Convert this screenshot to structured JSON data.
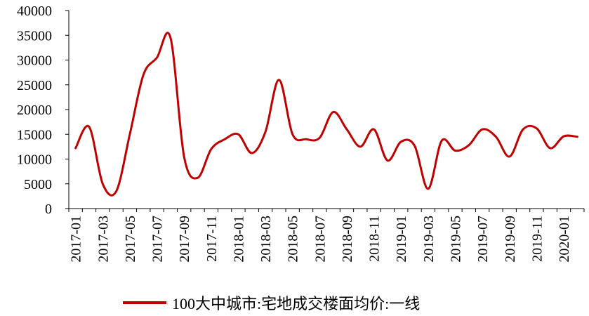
{
  "chart_data": {
    "type": "line",
    "title": "",
    "xlabel": "",
    "ylabel": "",
    "ylim": [
      0,
      40000
    ],
    "yticks": [
      "0",
      "5000",
      "10000",
      "15000",
      "20000",
      "25000",
      "30000",
      "35000",
      "40000"
    ],
    "x": [
      "2017-01",
      "2017-02",
      "2017-03",
      "2017-04",
      "2017-05",
      "2017-06",
      "2017-07",
      "2017-08",
      "2017-09",
      "2017-10",
      "2017-11",
      "2017-12",
      "2018-01",
      "2018-02",
      "2018-03",
      "2018-04",
      "2018-05",
      "2018-06",
      "2018-07",
      "2018-08",
      "2018-09",
      "2018-10",
      "2018-11",
      "2018-12",
      "2019-01",
      "2019-02",
      "2019-03",
      "2019-04",
      "2019-05",
      "2019-06",
      "2019-07",
      "2019-08",
      "2019-09",
      "2019-10",
      "2019-11",
      "2019-12",
      "2020-01",
      "2020-02"
    ],
    "xtick_labels": [
      "2017-01",
      "2017-03",
      "2017-05",
      "2017-07",
      "2017-09",
      "2017-11",
      "2018-01",
      "2018-03",
      "2018-05",
      "2018-07",
      "2018-09",
      "2018-11",
      "2019-01",
      "2019-03",
      "2019-05",
      "2019-07",
      "2019-09",
      "2019-11",
      "2020-01"
    ],
    "grid": false,
    "legend_position": "bottom",
    "series": [
      {
        "name": "100大中城市:宅地成交楼面均价:一线",
        "color": "#c00000",
        "values": [
          12200,
          16500,
          5000,
          3500,
          15000,
          27000,
          30500,
          34500,
          10500,
          6200,
          12000,
          14000,
          15000,
          11200,
          15500,
          26000,
          15000,
          14000,
          14300,
          19500,
          16000,
          12500,
          16000,
          9700,
          13500,
          12700,
          4000,
          13700,
          11700,
          12800,
          16000,
          14500,
          10500,
          16000,
          16200,
          12200,
          14600,
          14500
        ]
      }
    ]
  }
}
